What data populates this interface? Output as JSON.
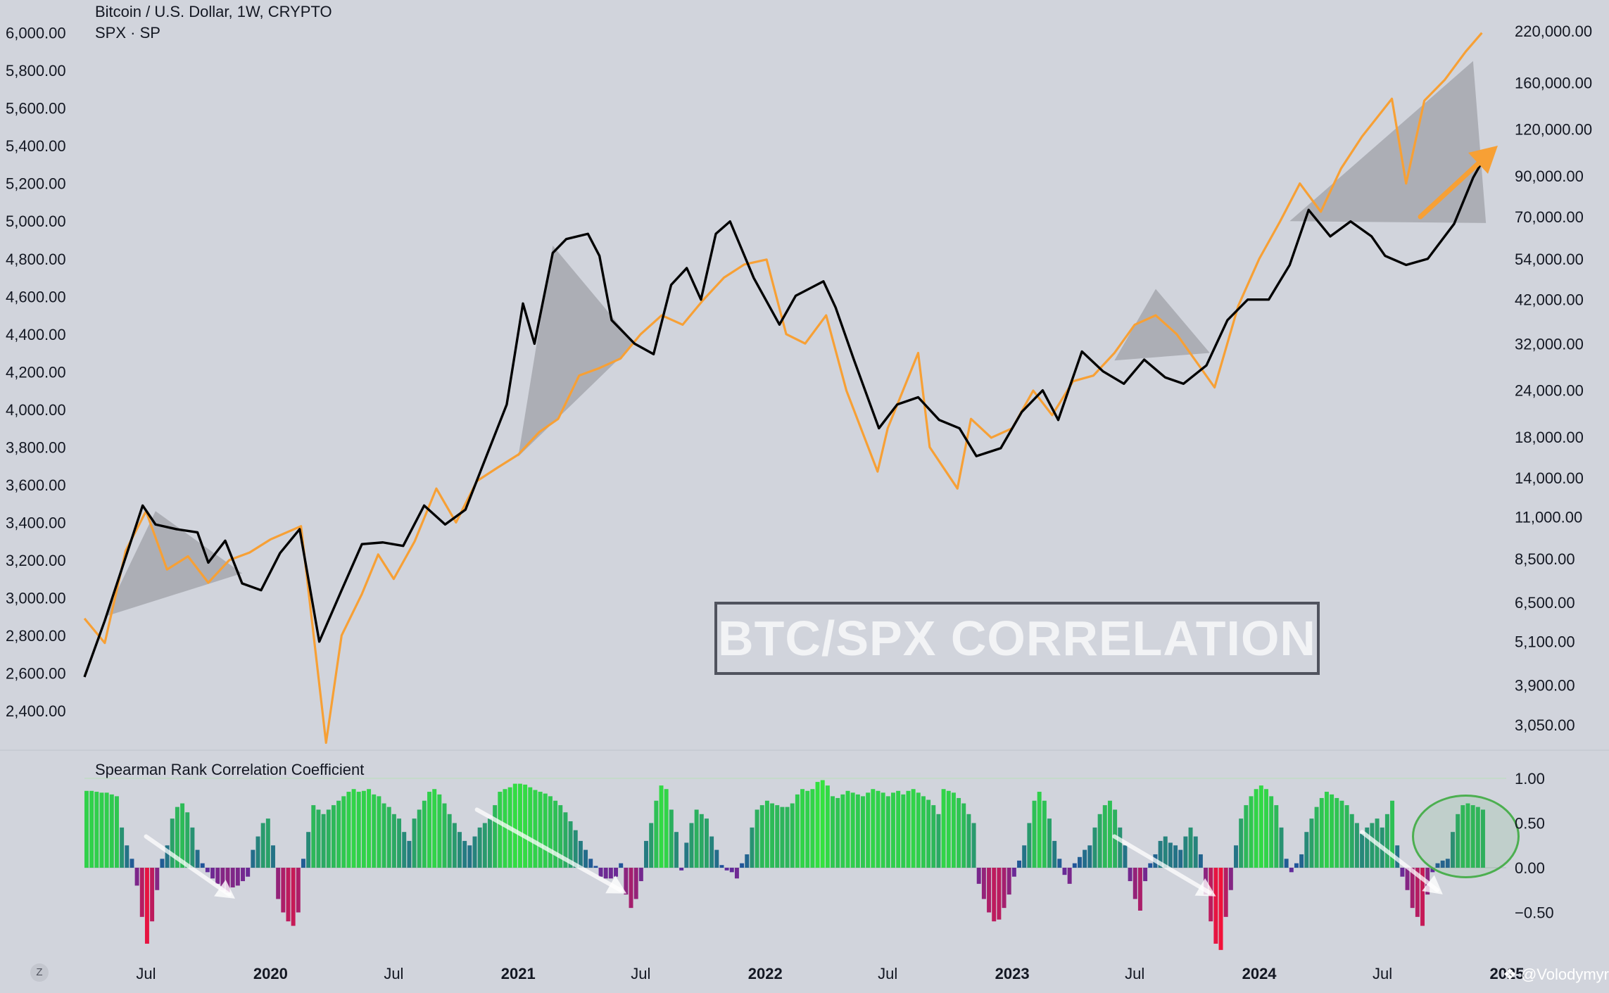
{
  "legend": {
    "title": "Bitcoin / U.S. Dollar, 1W, CRYPTO",
    "spx_label": "SPX · SP"
  },
  "watermark": "BTC/SPX CORRELATION",
  "attribution": "❖ @Volodymyr",
  "tz_label": "Z",
  "colors": {
    "background": "#d1d4dc",
    "btc_line": "#000000",
    "spx_line": "#f7a035",
    "triangle_fill": "#9fa1a8",
    "arrow": "#f7a035",
    "circle": "#4caf50",
    "bar_positive_high": "#33e63c",
    "bar_positive_low": "#1f4d9e",
    "bar_negative_low": "#5b2ca0",
    "bar_negative_high": "#ff1030"
  },
  "chart_data": [
    {
      "type": "line",
      "x_axis_labels": [
        "Jul",
        "2020",
        "Jul",
        "2021",
        "Jul",
        "2022",
        "Jul",
        "2023",
        "Jul",
        "2024",
        "Jul",
        "2025"
      ],
      "x_range": [
        "2019-04-01",
        "2024-12-31"
      ],
      "left_axis": {
        "series": "SPX · SP",
        "ticks": [
          "6,000.00",
          "5,800.00",
          "5,600.00",
          "5,400.00",
          "5,200.00",
          "5,000.00",
          "4,800.00",
          "4,600.00",
          "4,400.00",
          "4,200.00",
          "4,000.00",
          "3,800.00",
          "3,600.00",
          "3,400.00",
          "3,200.00",
          "3,000.00",
          "2,800.00",
          "2,600.00",
          "2,400.00"
        ],
        "ylim": [
          2310,
          6010
        ]
      },
      "right_axis": {
        "series": "Bitcoin / U.S. Dollar",
        "scale": "log",
        "ticks": [
          "220,000.00",
          "160,000.00",
          "120,000.00",
          "90,000.00",
          "70,000.00",
          "54,000.00",
          "42,000.00",
          "32,000.00",
          "24,000.00",
          "18,000.00",
          "14,000.00",
          "11,000.00",
          "8,500.00",
          "6,500.00",
          "5,100.00",
          "3,900.00",
          "3,050.00"
        ],
        "ylim": [
          3000,
          220000
        ]
      },
      "series": [
        {
          "name": "SPX · SP",
          "axis": "left",
          "x": [
            "2019-04-01",
            "2019-05-01",
            "2019-06-01",
            "2019-07-01",
            "2019-08-01",
            "2019-09-01",
            "2019-10-01",
            "2019-11-01",
            "2019-12-01",
            "2020-01-01",
            "2020-02-15",
            "2020-03-23",
            "2020-04-15",
            "2020-05-15",
            "2020-06-08",
            "2020-07-01",
            "2020-08-01",
            "2020-09-02",
            "2020-10-01",
            "2020-11-01",
            "2020-12-01",
            "2021-01-01",
            "2021-02-01",
            "2021-03-01",
            "2021-04-01",
            "2021-05-01",
            "2021-06-01",
            "2021-07-01",
            "2021-08-01",
            "2021-09-01",
            "2021-10-01",
            "2021-11-01",
            "2021-12-01",
            "2022-01-03",
            "2022-02-01",
            "2022-03-01",
            "2022-04-01",
            "2022-05-01",
            "2022-06-16",
            "2022-07-01",
            "2022-08-15",
            "2022-09-01",
            "2022-10-12",
            "2022-11-01",
            "2022-12-01",
            "2023-01-01",
            "2023-02-01",
            "2023-03-01",
            "2023-04-01",
            "2023-05-01",
            "2023-06-01",
            "2023-07-01",
            "2023-08-01",
            "2023-09-01",
            "2023-10-27",
            "2023-12-01",
            "2024-01-01",
            "2024-02-01",
            "2024-03-01",
            "2024-04-01",
            "2024-05-01",
            "2024-06-01",
            "2024-07-15",
            "2024-08-05",
            "2024-09-01",
            "2024-10-01",
            "2024-11-01",
            "2024-11-25"
          ],
          "values": [
            2890,
            2760,
            3250,
            3460,
            3150,
            3220,
            3080,
            3200,
            3240,
            3310,
            3380,
            2230,
            2800,
            3020,
            3230,
            3100,
            3300,
            3580,
            3400,
            3620,
            3690,
            3760,
            3880,
            3950,
            4180,
            4220,
            4270,
            4400,
            4500,
            4450,
            4580,
            4700,
            4770,
            4796,
            4400,
            4350,
            4500,
            4100,
            3670,
            3900,
            4300,
            3800,
            3580,
            3950,
            3850,
            3900,
            4100,
            3970,
            4150,
            4180,
            4300,
            4450,
            4500,
            4400,
            4117,
            4550,
            4800,
            5000,
            5200,
            5050,
            5280,
            5450,
            5650,
            5200,
            5640,
            5750,
            5900,
            6000
          ]
        },
        {
          "name": "Bitcoin / U.S. Dollar",
          "axis": "right",
          "x": [
            "2019-04-01",
            "2019-05-01",
            "2019-06-26",
            "2019-07-15",
            "2019-08-15",
            "2019-09-15",
            "2019-10-01",
            "2019-10-26",
            "2019-11-20",
            "2019-12-18",
            "2020-01-15",
            "2020-02-13",
            "2020-03-13",
            "2020-04-15",
            "2020-05-15",
            "2020-06-15",
            "2020-07-15",
            "2020-08-15",
            "2020-09-15",
            "2020-10-15",
            "2020-11-15",
            "2020-12-15",
            "2021-01-08",
            "2021-01-25",
            "2021-02-21",
            "2021-03-13",
            "2021-04-14",
            "2021-05-01",
            "2021-05-19",
            "2021-06-22",
            "2021-07-20",
            "2021-08-15",
            "2021-09-07",
            "2021-09-28",
            "2021-10-20",
            "2021-11-10",
            "2021-12-15",
            "2022-01-22",
            "2022-02-15",
            "2022-03-28",
            "2022-04-15",
            "2022-05-12",
            "2022-06-18",
            "2022-07-15",
            "2022-08-15",
            "2022-09-15",
            "2022-10-15",
            "2022-11-09",
            "2022-12-15",
            "2023-01-15",
            "2023-02-15",
            "2023-03-10",
            "2023-04-14",
            "2023-05-15",
            "2023-06-15",
            "2023-07-15",
            "2023-08-15",
            "2023-09-11",
            "2023-10-15",
            "2023-11-15",
            "2023-12-15",
            "2024-01-15",
            "2024-02-15",
            "2024-03-14",
            "2024-04-15",
            "2024-05-15",
            "2024-06-15",
            "2024-07-05",
            "2024-08-05",
            "2024-09-06",
            "2024-10-15",
            "2024-11-12",
            "2024-11-25",
            "2024-12-01"
          ],
          "values": [
            4100,
            5800,
            11800,
            10500,
            10200,
            10000,
            8300,
            9500,
            7300,
            7000,
            8800,
            10200,
            5100,
            7000,
            9300,
            9400,
            9200,
            11800,
            10500,
            11500,
            16000,
            22000,
            41000,
            32000,
            56000,
            61000,
            63000,
            55000,
            37000,
            32000,
            30000,
            46000,
            51000,
            42000,
            63000,
            68000,
            48000,
            36000,
            43000,
            47000,
            40000,
            29000,
            19000,
            22000,
            23000,
            20000,
            19000,
            16000,
            16800,
            21000,
            24000,
            20000,
            30500,
            27000,
            25000,
            29000,
            26000,
            25000,
            28000,
            37000,
            42000,
            42000,
            52000,
            73000,
            62000,
            68000,
            62000,
            55000,
            52000,
            54000,
            67000,
            89000,
            98000,
            95000
          ]
        }
      ],
      "annotations": [
        "shaded divergence triangles",
        "orange up arrow"
      ]
    },
    {
      "type": "bar",
      "title": "Spearman Rank Correlation Coefficient",
      "y_ticks": [
        "1.00",
        "0.50",
        "0.00",
        "−0.50"
      ],
      "ylim": [
        -1.0,
        1.0
      ],
      "x_range": [
        "2019-04-01",
        "2024-12-01"
      ],
      "values": [
        0.86,
        0.86,
        0.85,
        0.84,
        0.84,
        0.82,
        0.8,
        0.45,
        0.25,
        0.1,
        -0.2,
        -0.55,
        -0.85,
        -0.6,
        -0.25,
        0.1,
        0.25,
        0.55,
        0.68,
        0.72,
        0.62,
        0.45,
        0.2,
        0.05,
        -0.05,
        -0.12,
        -0.18,
        -0.25,
        -0.28,
        -0.22,
        -0.2,
        -0.15,
        -0.1,
        0.2,
        0.35,
        0.5,
        0.55,
        0.25,
        -0.35,
        -0.5,
        -0.6,
        -0.65,
        -0.5,
        0.1,
        0.4,
        0.7,
        0.65,
        0.6,
        0.65,
        0.7,
        0.75,
        0.8,
        0.85,
        0.88,
        0.85,
        0.86,
        0.88,
        0.82,
        0.8,
        0.72,
        0.68,
        0.6,
        0.55,
        0.4,
        0.3,
        0.55,
        0.65,
        0.75,
        0.85,
        0.88,
        0.82,
        0.72,
        0.6,
        0.5,
        0.4,
        0.3,
        0.25,
        0.35,
        0.45,
        0.5,
        0.55,
        0.7,
        0.85,
        0.88,
        0.9,
        0.94,
        0.94,
        0.93,
        0.9,
        0.87,
        0.85,
        0.83,
        0.8,
        0.75,
        0.7,
        0.62,
        0.52,
        0.42,
        0.3,
        0.2,
        0.1,
        0.02,
        -0.1,
        -0.12,
        -0.12,
        -0.1,
        0.05,
        -0.3,
        -0.45,
        -0.35,
        -0.15,
        0.3,
        0.5,
        0.75,
        0.92,
        0.88,
        0.65,
        0.4,
        -0.03,
        0.28,
        0.5,
        0.65,
        0.6,
        0.55,
        0.35,
        0.2,
        0.03,
        -0.03,
        -0.05,
        -0.12,
        0.05,
        0.15,
        0.45,
        0.65,
        0.7,
        0.75,
        0.72,
        0.7,
        0.68,
        0.68,
        0.72,
        0.82,
        0.88,
        0.86,
        0.88,
        0.96,
        0.98,
        0.92,
        0.8,
        0.78,
        0.82,
        0.86,
        0.84,
        0.82,
        0.8,
        0.84,
        0.88,
        0.86,
        0.84,
        0.8,
        0.84,
        0.86,
        0.82,
        0.86,
        0.88,
        0.84,
        0.8,
        0.76,
        0.7,
        0.6,
        0.88,
        0.86,
        0.84,
        0.78,
        0.72,
        0.6,
        0.5,
        -0.18,
        -0.35,
        -0.5,
        -0.6,
        -0.58,
        -0.45,
        -0.3,
        -0.1,
        0.08,
        0.25,
        0.5,
        0.75,
        0.85,
        0.75,
        0.55,
        0.3,
        0.1,
        -0.08,
        -0.18,
        0.05,
        0.12,
        0.2,
        0.25,
        0.45,
        0.6,
        0.7,
        0.75,
        0.65,
        0.45,
        0.25,
        -0.15,
        -0.35,
        -0.48,
        -0.15,
        0.05,
        0.15,
        0.3,
        0.35,
        0.28,
        0.25,
        0.2,
        0.35,
        0.45,
        0.35,
        0.15,
        -0.3,
        -0.6,
        -0.85,
        -0.92,
        -0.55,
        -0.25,
        0.25,
        0.55,
        0.7,
        0.8,
        0.88,
        0.92,
        0.88,
        0.8,
        0.7,
        0.45,
        0.1,
        -0.05,
        0.05,
        0.15,
        0.4,
        0.55,
        0.68,
        0.78,
        0.85,
        0.82,
        0.78,
        0.75,
        0.7,
        0.6,
        0.5,
        0.38,
        0.45,
        0.5,
        0.55,
        0.45,
        0.6,
        0.75,
        0.25,
        -0.1,
        -0.25,
        -0.45,
        -0.55,
        -0.65,
        -0.3,
        -0.05,
        0.05,
        0.08,
        0.1,
        0.4,
        0.6,
        0.7,
        0.72,
        0.7,
        0.68,
        0.65
      ]
    }
  ]
}
